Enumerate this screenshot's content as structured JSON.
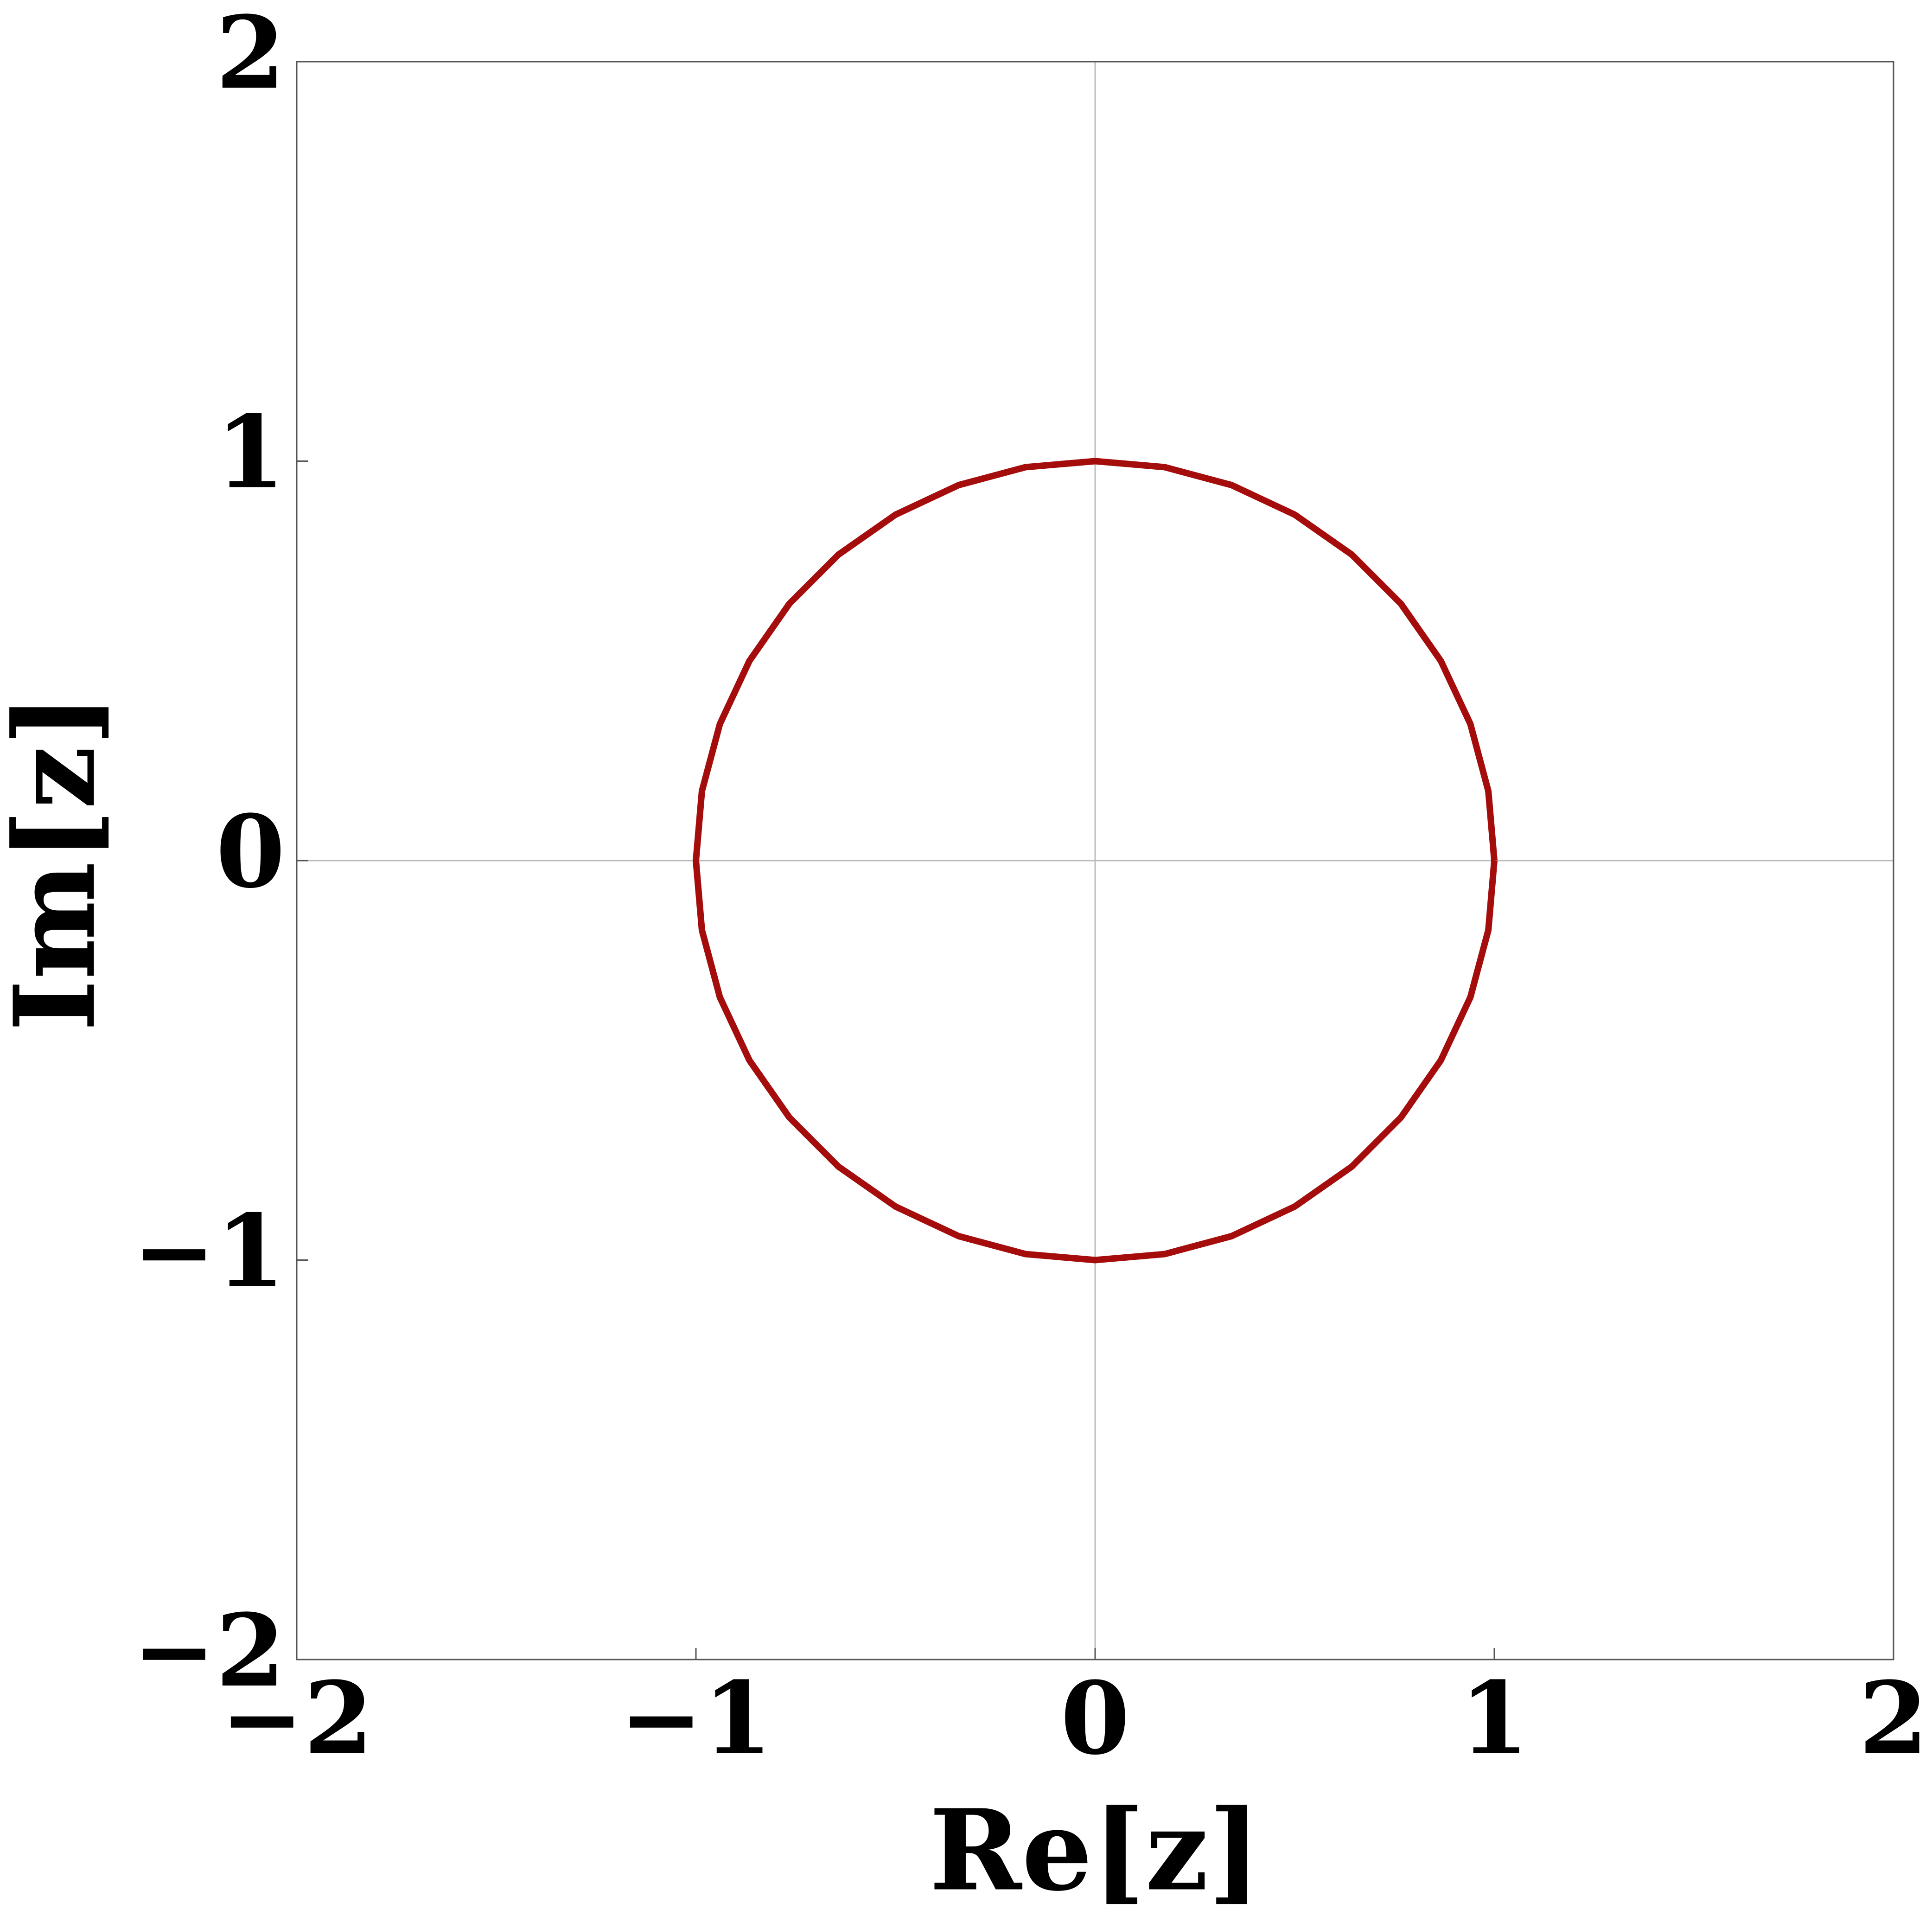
{
  "chart_data": {
    "type": "line",
    "xlabel": "Re[z]",
    "ylabel": "Im[z]",
    "series": [
      {
        "color": "#a50d0d",
        "x": [
          1,
          0.985,
          0.94,
          0.866,
          0.766,
          0.643,
          0.5,
          0.342,
          0.174,
          0,
          -0.174,
          -0.342,
          -0.5,
          -0.643,
          -0.766,
          -0.866,
          -0.94,
          -0.985,
          -1,
          -0.985,
          -0.94,
          -0.866,
          -0.766,
          -0.643,
          -0.5,
          -0.342,
          -0.174,
          0,
          0.174,
          0.342,
          0.5,
          0.643,
          0.766,
          0.866,
          0.94,
          0.985,
          1
        ],
        "values": [
          0,
          0.174,
          0.342,
          0.5,
          0.643,
          0.766,
          0.866,
          0.94,
          0.985,
          1,
          0.985,
          0.94,
          0.866,
          0.766,
          0.643,
          0.5,
          0.342,
          0.174,
          0,
          -0.174,
          -0.342,
          -0.5,
          -0.643,
          -0.766,
          -0.866,
          -0.94,
          -0.985,
          -1,
          -0.985,
          -0.94,
          -0.866,
          -0.766,
          -0.643,
          -0.5,
          -0.342,
          -0.174,
          0
        ]
      }
    ],
    "xlim": [
      -2,
      2
    ],
    "ylim": [
      -2,
      2
    ],
    "xticks": [
      {
        "value": -2,
        "label": "−2"
      },
      {
        "value": -1,
        "label": "−1"
      },
      0,
      1,
      2
    ],
    "yticks": [
      {
        "value": -2,
        "label": "−2"
      },
      {
        "value": -1,
        "label": "−1"
      },
      0,
      1,
      2
    ],
    "origin_lines": true
  }
}
